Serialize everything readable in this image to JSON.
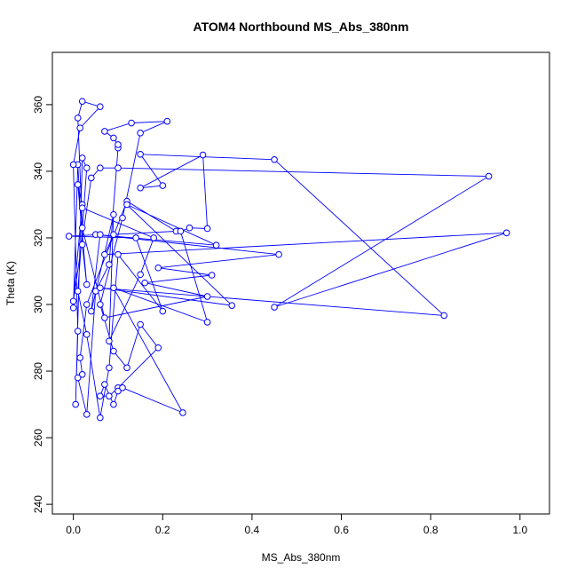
{
  "chart_data": {
    "type": "scatter",
    "title": "ATOM4 Northbound MS_Abs_380nm",
    "xlabel": "MS_Abs_380nm",
    "ylabel": "Theta (K)",
    "color": "#0000ff",
    "connect_points": true,
    "xlim": [
      -0.047,
      1.066
    ],
    "ylim": [
      237.1,
      375.7
    ],
    "xticks": [
      {
        "value": 0,
        "label": "0.0"
      },
      0.2,
      0.4,
      0.6,
      0.8,
      {
        "value": 1,
        "label": "1.0"
      }
    ],
    "yticks": [
      240,
      260,
      280,
      300,
      320,
      340,
      360
    ],
    "series": [
      {
        "name": "MS_Abs_380nm",
        "x": [
          0.0,
          0.01,
          0.02,
          0.03,
          0.01,
          0.02,
          0.0,
          0.04,
          0.06,
          0.1,
          0.93,
          0.45,
          0.97,
          0.07,
          0.09,
          0.23,
          0.12,
          0.03,
          0.015,
          0.02,
          0.01,
          0.03,
          0.05,
          0.08,
          0.1,
          0.1,
          0.09,
          0.07,
          0.13,
          0.21,
          0.15,
          0.11,
          0.06,
          0.09,
          0.12,
          0.15,
          0.19,
          0.1,
          0.08,
          0.06,
          0.07,
          0.09,
          0.1,
          0.11,
          0.245,
          0.09,
          0.3,
          0.24,
          0.26,
          0.3,
          0.29,
          0.15,
          0.2,
          0.15,
          0.45,
          0.83,
          0.06,
          0.355,
          0.12,
          0.32,
          0.05,
          0.46,
          0.19,
          0.31,
          0.16,
          0.3,
          0.07,
          0.02,
          0.01,
          0.02,
          0.06,
          0.015,
          0.0,
          0.01,
          0.005,
          0.02,
          0.03,
          0.01,
          0.03,
          0.06,
          0.08,
          0.1,
          0.2,
          0.14,
          -0.01,
          0.06,
          0.04,
          0.09,
          0.08,
          0.15,
          0.18,
          0.02
        ],
        "values": [
          299,
          342,
          318,
          306,
          336,
          330,
          301,
          338,
          341,
          341,
          338.5,
          299.2,
          321.5,
          315,
          321,
          322,
          331,
          300,
          284,
          279,
          278,
          267,
          304,
          312,
          347,
          348,
          350,
          352,
          354.5,
          355,
          351.5,
          326,
          300,
          286,
          281,
          294,
          287,
          275,
          272.5,
          272.5,
          276,
          270,
          274,
          275,
          267.5,
          305,
          294.7,
          322,
          323,
          322.8,
          344.9,
          335,
          335.7,
          345.1,
          343.5,
          296.7,
          305,
          299.7,
          330,
          317.8,
          321,
          315,
          311,
          308.8,
          306.5,
          302.4,
          296,
          323,
          356,
          361,
          359.4,
          353,
          342,
          292,
          270,
          344,
          341,
          304,
          291,
          266,
          281,
          315,
          298,
          320,
          320.5,
          321,
          298,
          327,
          289,
          309,
          320,
          329
        ]
      }
    ]
  }
}
